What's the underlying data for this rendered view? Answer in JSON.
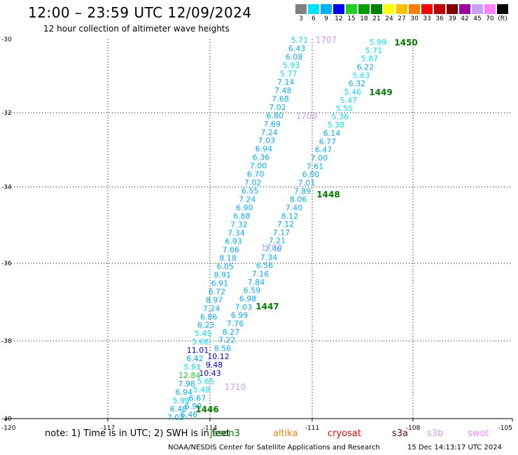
{
  "header": {
    "title": "12:00 – 23:59 UTC 12/09/2024",
    "subtitle": "12 hour collection of altimeter wave heights"
  },
  "colorbar": {
    "cells": [
      {
        "color": "#808080",
        "label": "3"
      },
      {
        "color": "#00e5ff",
        "label": "6"
      },
      {
        "color": "#00b0ff",
        "label": "9"
      },
      {
        "color": "#0000ff",
        "label": "12"
      },
      {
        "color": "#20d020",
        "label": "15"
      },
      {
        "color": "#00a000",
        "label": "18"
      },
      {
        "color": "#008000",
        "label": "21"
      },
      {
        "color": "#ffff00",
        "label": "24"
      },
      {
        "color": "#ffc000",
        "label": "27"
      },
      {
        "color": "#ff8000",
        "label": "30"
      },
      {
        "color": "#ff0000",
        "label": "33"
      },
      {
        "color": "#c00000",
        "label": "36"
      },
      {
        "color": "#800000",
        "label": "39"
      },
      {
        "color": "#a000a0",
        "label": "42"
      },
      {
        "color": "#c8a0ff",
        "label": "45"
      },
      {
        "color": "#ff80ff",
        "label": "70"
      },
      {
        "color": "#000000",
        "label": "(ft)"
      }
    ]
  },
  "map": {
    "lon_ticks": [
      "-120",
      "-117",
      "-114",
      "-111",
      "-108",
      "-105"
    ],
    "lat_ticks": [
      "-30",
      "-32",
      "-34",
      "-36",
      "-38",
      "-40"
    ],
    "track_a": {
      "values": [
        "5.71",
        "6.43",
        "6.08",
        "5.93",
        "5.77",
        "7.14",
        "7.48",
        "7.68",
        "7.02",
        "6.80",
        "7.69",
        "7.24",
        "7.03",
        "6.94",
        "6.36",
        "7.00",
        "6.70",
        "7.02",
        "6.55",
        "7.24",
        "6.90",
        "6.88",
        "7.32",
        "7.34",
        "6.93",
        "7.66",
        "8.18",
        "6.05",
        "8.91",
        "6.91",
        "6.72",
        "8.97",
        "7.24",
        "6.86",
        "6.23",
        "5.45",
        "5.68",
        "11.01",
        "6.42",
        "5.93",
        "12.84",
        "7.98",
        "6.94",
        "5.99",
        "6.48",
        "7.03"
      ]
    },
    "track_b": {
      "values": [
        "5.99",
        "5.71",
        "5.87",
        "6.22",
        "5.63",
        "6.32",
        "5.46",
        "5.47",
        "5.55",
        "5.36",
        "5.38",
        "6.14",
        "6.77",
        "6.47",
        "7.00",
        "7.61",
        "6.80",
        "7.01",
        "7.89",
        "8.06",
        "7.40",
        "8.12",
        "7.12",
        "7.17",
        "7.21",
        "7.46",
        "7.34",
        "6.56",
        "7.16",
        "7.84",
        "6.59",
        "6.98",
        "7.03",
        "6.99",
        "7.76",
        "8.27",
        "7.22",
        "8.56",
        "10.12",
        "9.48",
        "10.43",
        "5.65",
        "5.48",
        "6.67",
        "6.99",
        "6.46"
      ]
    },
    "time_labels": [
      {
        "text": "1707",
        "sat": "s3b"
      },
      {
        "text": "1450",
        "sat": "jason3"
      },
      {
        "text": "1449",
        "sat": "jason3"
      },
      {
        "text": "1708",
        "sat": "s3b"
      },
      {
        "text": "1448",
        "sat": "jason3"
      },
      {
        "text": "1709",
        "sat": "s3b"
      },
      {
        "text": "1447",
        "sat": "jason3"
      },
      {
        "text": "1710",
        "sat": "s3b"
      },
      {
        "text": "1446",
        "sat": "jason3"
      }
    ]
  },
  "footer": {
    "note": "note: 1) Time is in UTC; 2) SWH is in feet",
    "legend": [
      {
        "name": "jason3",
        "color": "#008000"
      },
      {
        "name": "altika",
        "color": "#ff8000"
      },
      {
        "name": "cryosat",
        "color": "#ff0000"
      },
      {
        "name": "s3a",
        "color": "#800000"
      },
      {
        "name": "s3b",
        "color": "#c8a0ff"
      },
      {
        "name": "swot",
        "color": "#ff80ff"
      }
    ],
    "credit": "NOAA/NESDIS Center for Satellite Applications and Research",
    "timestamp": "15 Dec 14:13:17 UTC 2024"
  }
}
